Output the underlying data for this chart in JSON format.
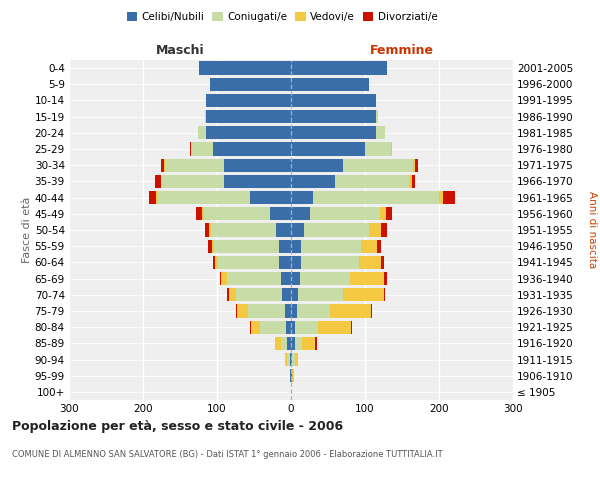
{
  "age_groups": [
    "100+",
    "95-99",
    "90-94",
    "85-89",
    "80-84",
    "75-79",
    "70-74",
    "65-69",
    "60-64",
    "55-59",
    "50-54",
    "45-49",
    "40-44",
    "35-39",
    "30-34",
    "25-29",
    "20-24",
    "15-19",
    "10-14",
    "5-9",
    "0-4"
  ],
  "birth_years": [
    "≤ 1905",
    "1906-1910",
    "1911-1915",
    "1916-1920",
    "1921-1925",
    "1926-1930",
    "1931-1935",
    "1936-1940",
    "1941-1945",
    "1946-1950",
    "1951-1955",
    "1956-1960",
    "1961-1965",
    "1966-1970",
    "1971-1975",
    "1976-1980",
    "1981-1985",
    "1986-1990",
    "1991-1995",
    "1996-2000",
    "2001-2005"
  ],
  "males": {
    "celibi": [
      0,
      1,
      2,
      5,
      7,
      8,
      12,
      14,
      16,
      16,
      20,
      28,
      55,
      90,
      90,
      105,
      115,
      115,
      115,
      110,
      125
    ],
    "coniugati": [
      0,
      0,
      3,
      8,
      35,
      50,
      62,
      72,
      82,
      88,
      88,
      90,
      125,
      85,
      80,
      30,
      10,
      1,
      0,
      0,
      0
    ],
    "vedovi": [
      0,
      1,
      3,
      8,
      12,
      15,
      10,
      8,
      5,
      3,
      3,
      2,
      2,
      1,
      1,
      0,
      0,
      0,
      0,
      0,
      0
    ],
    "divorziati": [
      0,
      0,
      0,
      1,
      1,
      1,
      2,
      2,
      2,
      5,
      5,
      8,
      10,
      8,
      5,
      2,
      0,
      0,
      0,
      0,
      0
    ]
  },
  "females": {
    "nubili": [
      0,
      1,
      2,
      5,
      6,
      8,
      10,
      12,
      14,
      14,
      18,
      25,
      30,
      60,
      70,
      100,
      115,
      115,
      115,
      105,
      130
    ],
    "coniugate": [
      0,
      1,
      3,
      10,
      30,
      45,
      60,
      68,
      78,
      80,
      88,
      95,
      170,
      100,
      95,
      35,
      12,
      2,
      0,
      0,
      0
    ],
    "vedove": [
      0,
      2,
      5,
      18,
      45,
      55,
      55,
      45,
      30,
      22,
      16,
      8,
      6,
      3,
      3,
      1,
      0,
      0,
      0,
      0,
      0
    ],
    "divorziate": [
      0,
      0,
      0,
      2,
      1,
      2,
      2,
      5,
      3,
      5,
      8,
      8,
      15,
      5,
      3,
      1,
      0,
      0,
      0,
      0,
      0
    ]
  },
  "colors": {
    "celibi": "#3A6EA8",
    "coniugati": "#C8DCA8",
    "vedovi": "#F5C842",
    "divorziati": "#CC1100"
  },
  "title": "Popolazione per età, sesso e stato civile - 2006",
  "subtitle": "COMUNE DI ALMENNO SAN SALVATORE (BG) - Dati ISTAT 1° gennaio 2006 - Elaborazione TUTTITALIA.IT",
  "xlabel_left": "Maschi",
  "xlabel_right": "Femmine",
  "ylabel_left": "Fasce di età",
  "ylabel_right": "Anni di nascita",
  "xlim": 300,
  "bg_color": "#ffffff",
  "plot_bg": "#efefef"
}
